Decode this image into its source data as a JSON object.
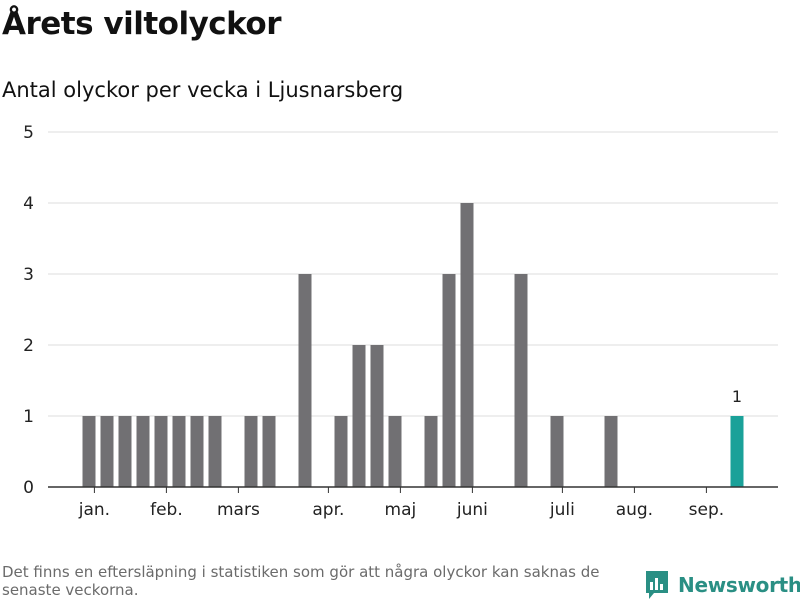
{
  "header": {
    "title": "Årets viltolyckor",
    "subtitle": "Antal olyckor per vecka i Ljusnarsberg"
  },
  "chart_data": {
    "type": "bar",
    "title": "Årets viltolyckor",
    "subtitle": "Antal olyckor per vecka i Ljusnarsberg",
    "xlabel": "",
    "ylabel": "",
    "ylim": [
      0,
      5
    ],
    "yticks": [
      0,
      1,
      2,
      3,
      4,
      5
    ],
    "grid": true,
    "x": [
      2,
      3,
      4,
      5,
      6,
      7,
      8,
      9,
      10,
      11,
      12,
      13,
      14,
      15,
      16,
      17,
      18,
      19,
      20,
      21,
      22,
      23,
      24,
      25,
      26,
      27,
      28,
      29,
      30,
      31,
      32,
      33,
      34,
      35,
      36,
      37,
      38
    ],
    "values": [
      1,
      1,
      1,
      1,
      1,
      1,
      1,
      1,
      0,
      1,
      1,
      0,
      3,
      0,
      1,
      2,
      2,
      1,
      0,
      1,
      3,
      4,
      0,
      0,
      3,
      0,
      1,
      0,
      0,
      1,
      0,
      0,
      0,
      0,
      0,
      0,
      1
    ],
    "month_ticks": [
      {
        "label": "jan.",
        "week": 2.3
      },
      {
        "label": "feb.",
        "week": 6.3
      },
      {
        "label": "mars",
        "week": 10.3
      },
      {
        "label": "apr.",
        "week": 15.3
      },
      {
        "label": "maj",
        "week": 19.3
      },
      {
        "label": "juni",
        "week": 23.3
      },
      {
        "label": "juli",
        "week": 28.3
      },
      {
        "label": "aug.",
        "week": 32.3
      },
      {
        "label": "sep.",
        "week": 36.3
      }
    ],
    "highlight": {
      "week": 38,
      "value": 1,
      "label": "1"
    },
    "colors": {
      "bar": "#717073",
      "highlight": "#1aa199",
      "grid": "#dddddd",
      "axis": "#333333"
    }
  },
  "footer": {
    "note": "Det finns en eftersläpning i statistiken som gör att några olyckor kan saknas de senaste veckorna.",
    "brand_name": "Newsworthy",
    "brand_icon": "newsworthy-logo-icon",
    "brand_color": "#2a8f84"
  }
}
